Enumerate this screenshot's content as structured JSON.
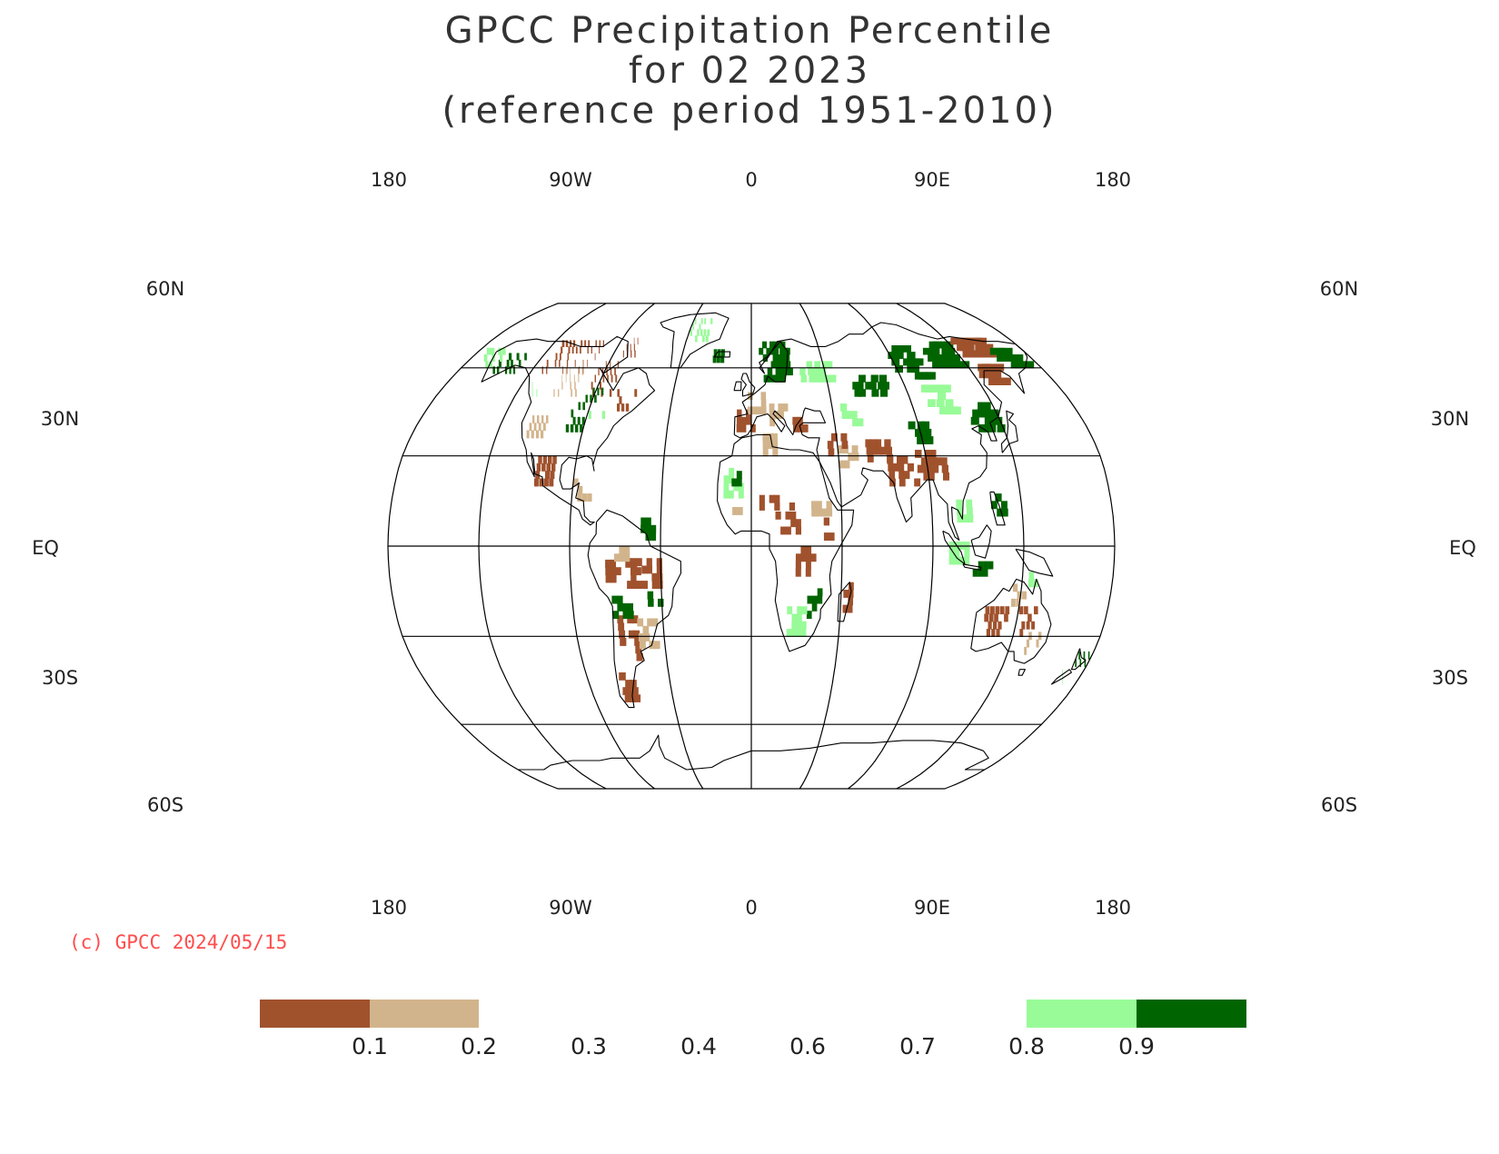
{
  "title_lines": [
    "GPCC Precipitation Percentile",
    "for 02 2023",
    "(reference period 1951-2010)"
  ],
  "map": {
    "projection": "Robinson",
    "central_meridian_label": "0",
    "lon_labels": [
      "180",
      "90W",
      "0",
      "90E",
      "180"
    ],
    "lat_labels": {
      "60N": "60N",
      "30N": "30N",
      "EQ": "EQ",
      "30S": "30S",
      "60S": "60S"
    },
    "category_colors": {
      "very_dry": "#a0522d",
      "dry": "#d2b48c",
      "wet": "#98fb98",
      "very_wet": "#006400"
    }
  },
  "credit": "(c) GPCC 2024/05/15",
  "legend": {
    "tick_labels": [
      "0.1",
      "0.2",
      "0.3",
      "0.4",
      "0.6",
      "0.7",
      "0.8",
      "0.9"
    ],
    "boxes": [
      {
        "range": "below 0.1",
        "color": "#a0522d"
      },
      {
        "range": "0.1-0.2",
        "color": "#d2b48c"
      },
      {
        "range": "0.8-0.9",
        "color": "#98fb98"
      },
      {
        "range": "above 0.9",
        "color": "#006400"
      }
    ]
  }
}
